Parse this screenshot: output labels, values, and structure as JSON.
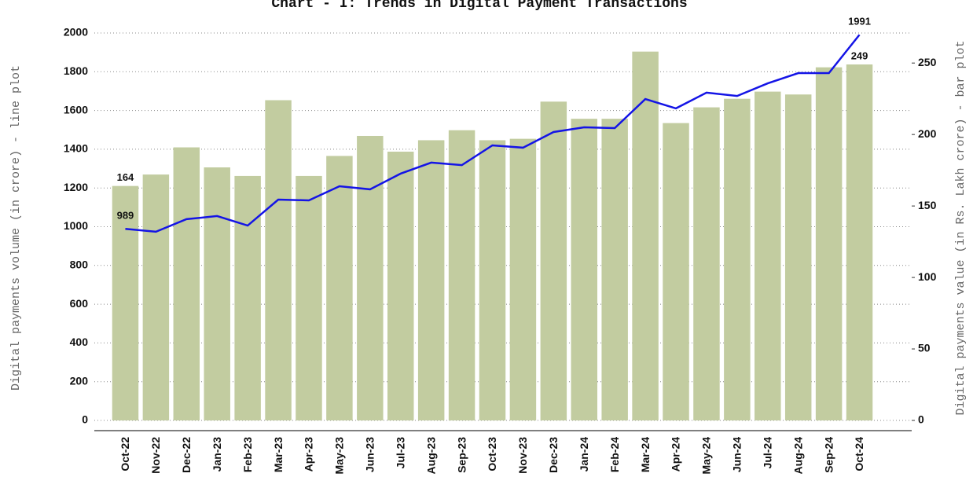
{
  "chart_data": {
    "type": "bar_line",
    "title": "Chart - I: Trends in Digital Payment Transactions",
    "y_label": "Digital payments volume (in crore) - line plot",
    "y2_label": "Digital payments value (in Rs. Lakh crore) - bar plot",
    "categories": [
      "Oct-22",
      "Nov-22",
      "Dec-22",
      "Jan-23",
      "Feb-23",
      "Mar-23",
      "Apr-23",
      "May-23",
      "Jun-23",
      "Jul-23",
      "Aug-23",
      "Sep-23",
      "Oct-23",
      "Nov-23",
      "Dec-23",
      "Jan-24",
      "Feb-24",
      "Mar-24",
      "Apr-24",
      "May-24",
      "Jun-24",
      "Jul-24",
      "Aug-24",
      "Sep-24",
      "Oct-24"
    ],
    "series": [
      {
        "name": "Digital payments value",
        "color": "#c2cca0",
        "axis": "y2",
        "kind": "bar",
        "values": [
          164,
          172,
          191,
          177,
          171,
          224,
          171,
          185,
          199,
          188,
          196,
          203,
          196,
          197,
          223,
          211,
          211,
          258,
          208,
          219,
          225,
          230,
          228,
          247,
          249
        ],
        "value_labels": [
          "164",
          null,
          null,
          null,
          null,
          null,
          null,
          null,
          null,
          null,
          null,
          null,
          null,
          null,
          null,
          null,
          null,
          null,
          null,
          null,
          null,
          null,
          null,
          null,
          "249"
        ],
        "label_color": "#111"
      },
      {
        "name": "Digital payments volume",
        "color": "#1414e6",
        "axis": "y",
        "kind": "line",
        "values": [
          989,
          974,
          1039,
          1055,
          1006,
          1140,
          1136,
          1209,
          1193,
          1274,
          1331,
          1318,
          1420,
          1408,
          1489,
          1513,
          1509,
          1659,
          1611,
          1692,
          1675,
          1740,
          1793,
          1793,
          1991
        ],
        "value_labels": [
          "989",
          null,
          null,
          null,
          null,
          null,
          null,
          null,
          null,
          null,
          null,
          null,
          null,
          null,
          null,
          null,
          null,
          null,
          null,
          null,
          null,
          null,
          null,
          null,
          "1991"
        ],
        "label_color": "#1414e6"
      }
    ],
    "ylim": [
      0,
      2000
    ],
    "yticks": [
      0,
      200,
      400,
      600,
      800,
      1000,
      1200,
      1400,
      1600,
      1800,
      2000
    ],
    "y2lim": [
      0,
      271
    ],
    "y2ticks": [
      0,
      50,
      100,
      150,
      200,
      250
    ],
    "grid": true
  }
}
